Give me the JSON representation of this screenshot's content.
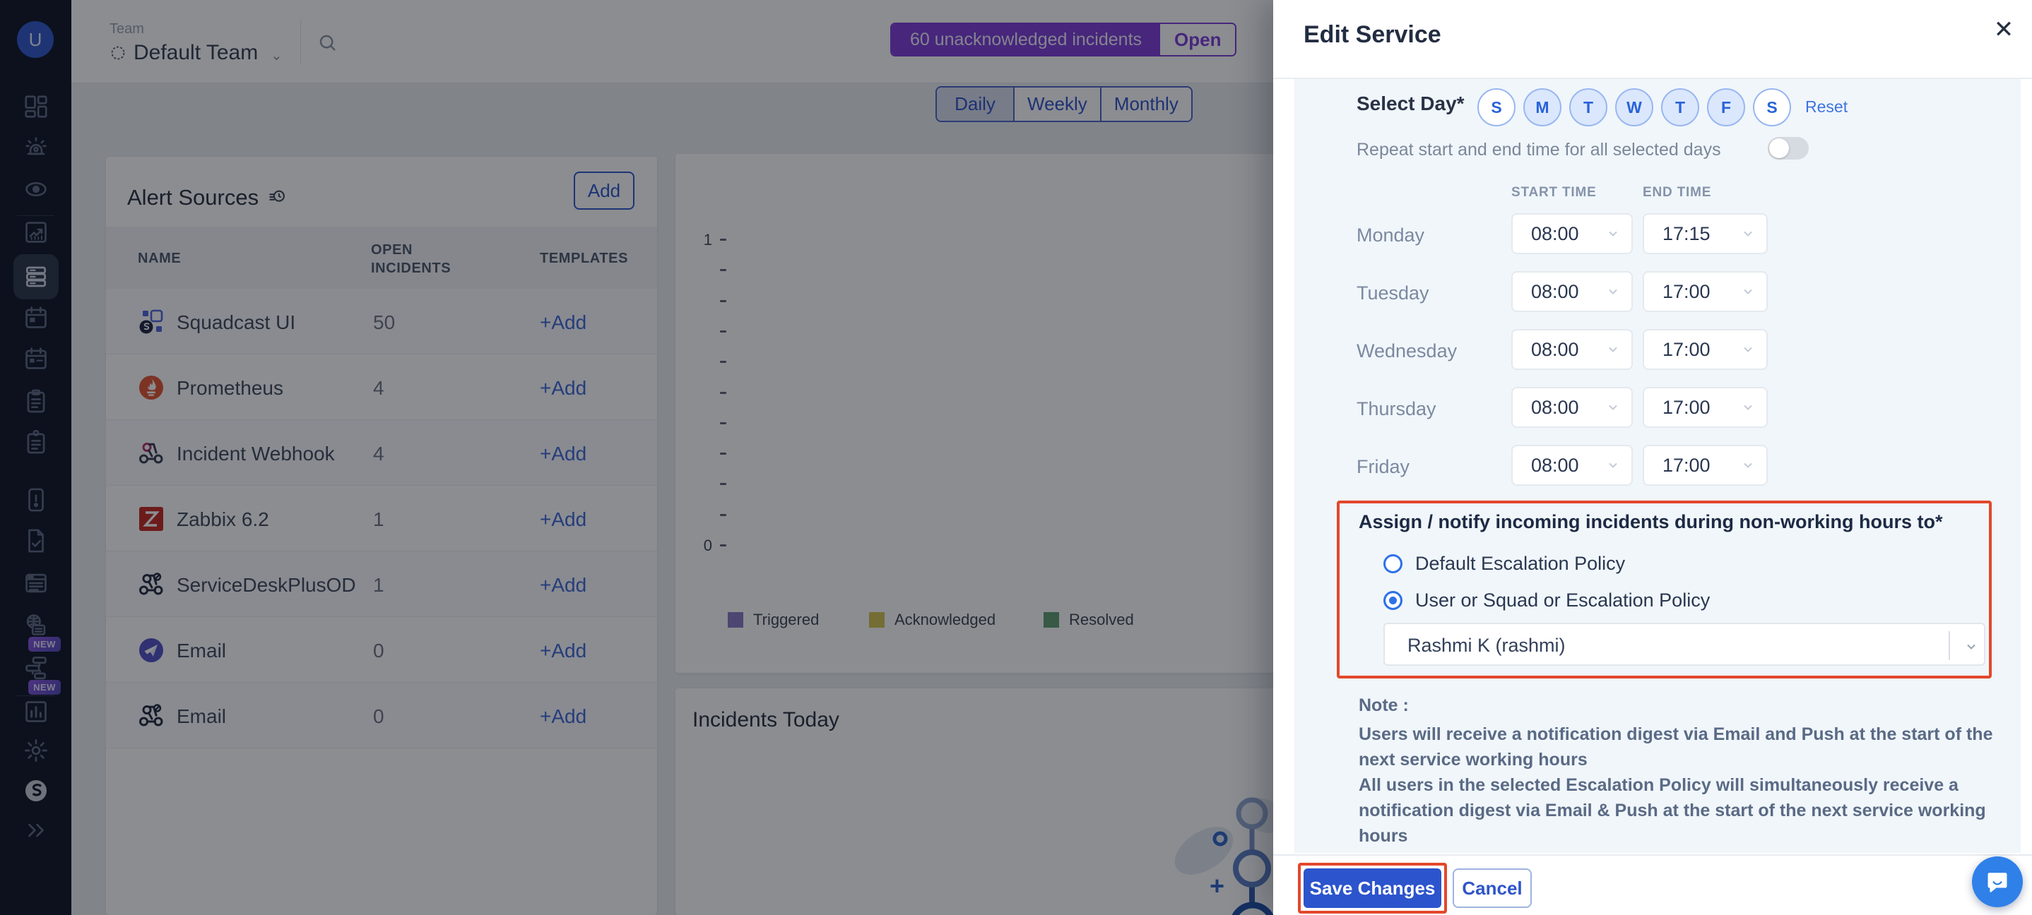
{
  "colors": {
    "accent_purple": "#7e3bd6",
    "accent_blue": "#2e55c9",
    "save_blue": "#2c54cc",
    "highlight_red": "#e3472b",
    "sidebar_bg": "#0c1322",
    "modal_section_bg": "#f0f6fa"
  },
  "sidebar": {
    "avatar_initial": "U",
    "items": [
      {
        "name": "dashboard",
        "icon": "grid-icon"
      },
      {
        "name": "incidents",
        "icon": "siren-icon"
      },
      {
        "name": "oncall-watch",
        "icon": "eye-icon"
      },
      {
        "name": "divider"
      },
      {
        "name": "analytics",
        "icon": "chartline-icon"
      },
      {
        "name": "services",
        "icon": "servers-icon",
        "active": true
      },
      {
        "name": "schedules",
        "icon": "calendar-icon"
      },
      {
        "name": "calendar",
        "icon": "calendar-alt-icon"
      },
      {
        "name": "escalation-policies",
        "icon": "clipboard-icon"
      },
      {
        "name": "runbooks",
        "icon": "clipboard-pin-icon"
      },
      {
        "name": "postmortems",
        "icon": "phone-alert-icon"
      },
      {
        "name": "tasks",
        "icon": "doc-check-icon"
      },
      {
        "name": "status-pages",
        "icon": "browser-icon"
      },
      {
        "name": "webforms",
        "icon": "globe-doc-icon",
        "badge": "NEW"
      },
      {
        "name": "workflows",
        "icon": "flow-icon",
        "badge": "NEW"
      },
      {
        "name": "divider"
      },
      {
        "name": "reports",
        "icon": "bars-icon"
      },
      {
        "name": "settings",
        "icon": "gear-icon"
      },
      {
        "name": "squadcast-logo",
        "icon": "logo-icon"
      },
      {
        "name": "expand-sidebar",
        "icon": "chevrons-icon"
      }
    ]
  },
  "topbar": {
    "team_label": "Team",
    "team_name": "Default Team",
    "banner_text": "60 unacknowledged incidents",
    "banner_action": "Open"
  },
  "period_tabs": {
    "options": [
      "Daily",
      "Weekly",
      "Monthly"
    ],
    "active": "Daily"
  },
  "alert_sources": {
    "title": "Alert Sources",
    "add_label": "Add",
    "columns": [
      "NAME",
      "OPEN INCIDENTS",
      "TEMPLATES"
    ],
    "rows": [
      {
        "icon": "squadcast-ui-icon",
        "name": "Squadcast UI",
        "open_incidents": "50",
        "action": "+Add"
      },
      {
        "icon": "prometheus-icon",
        "name": "Prometheus",
        "open_incidents": "4",
        "action": "+Add"
      },
      {
        "icon": "incident-webhook-icon",
        "name": "Incident Webhook",
        "open_incidents": "4",
        "action": "+Add"
      },
      {
        "icon": "zabbix-icon",
        "name": "Zabbix 6.2",
        "open_incidents": "1",
        "action": "+Add"
      },
      {
        "icon": "webhook-dark-icon",
        "name": "ServiceDeskPlusOD",
        "open_incidents": "1",
        "action": "+Add"
      },
      {
        "icon": "email-plane-icon",
        "name": "Email",
        "open_incidents": "0",
        "action": "+Add"
      },
      {
        "icon": "webhook-dark-icon",
        "name": "Email",
        "open_incidents": "0",
        "action": "+Add"
      }
    ]
  },
  "chart": {
    "y_ticks": [
      "1",
      "0"
    ],
    "legend": [
      {
        "label": "Triggered",
        "color": "#8878c3"
      },
      {
        "label": "Acknowledged",
        "color": "#d4c34e"
      },
      {
        "label": "Resolved",
        "color": "#5f9c6d"
      }
    ]
  },
  "chart_data": {
    "type": "bar",
    "title": "",
    "xlabel": "",
    "ylabel": "",
    "categories": [],
    "series": [
      {
        "name": "Triggered",
        "values": []
      },
      {
        "name": "Acknowledged",
        "values": []
      },
      {
        "name": "Resolved",
        "values": []
      }
    ],
    "ylim": [
      0,
      1
    ],
    "y_tick_labels_visible": [
      "1",
      "0"
    ],
    "grid": false,
    "legend_position": "bottom"
  },
  "incidents_today": {
    "title": "Incidents Today"
  },
  "modal": {
    "title": "Edit Service",
    "close_icon": "✕",
    "select_day": {
      "label": "Select Day*",
      "days": [
        {
          "letter": "S",
          "selected": false
        },
        {
          "letter": "M",
          "selected": true
        },
        {
          "letter": "T",
          "selected": true
        },
        {
          "letter": "W",
          "selected": true
        },
        {
          "letter": "T",
          "selected": true
        },
        {
          "letter": "F",
          "selected": true
        },
        {
          "letter": "S",
          "selected": false
        }
      ],
      "reset_label": "Reset"
    },
    "repeat": {
      "label": "Repeat start and end time for all selected days",
      "enabled": false
    },
    "schedule": {
      "columns": [
        "START TIME",
        "END TIME"
      ],
      "rows": [
        {
          "day": "Monday",
          "start": "08:00",
          "end": "17:15"
        },
        {
          "day": "Tuesday",
          "start": "08:00",
          "end": "17:00"
        },
        {
          "day": "Wednesday",
          "start": "08:00",
          "end": "17:00"
        },
        {
          "day": "Thursday",
          "start": "08:00",
          "end": "17:00"
        },
        {
          "day": "Friday",
          "start": "08:00",
          "end": "17:00"
        }
      ]
    },
    "assign": {
      "title": "Assign / notify incoming incidents during non-working hours to*",
      "options": [
        {
          "label": "Default Escalation Policy",
          "selected": false
        },
        {
          "label": "User or Squad or Escalation Policy",
          "selected": true
        }
      ],
      "selected_value": "Rashmi K (rashmi)"
    },
    "note": {
      "title": "Note :",
      "lines": [
        "Users will receive a notification digest via Email and Push at the start of the next service working hours",
        "All users in the selected Escalation Policy will simultaneously receive a notification digest via Email & Push at the start of the next service working hours"
      ]
    },
    "footer": {
      "save_label": "Save Changes",
      "cancel_label": "Cancel"
    }
  },
  "chat": {
    "icon": "chat-bubble-icon"
  }
}
